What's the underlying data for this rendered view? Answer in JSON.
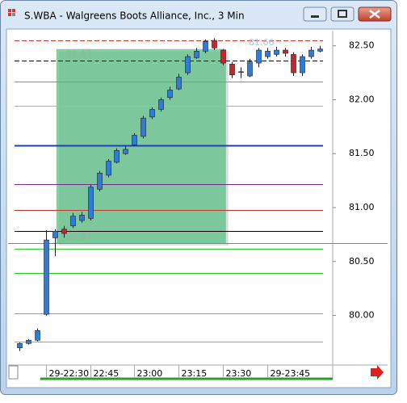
{
  "chart_data": {
    "type": "candlestick",
    "title": "S.WBA - Walgreens Boots Alliance, Inc., 3 Min",
    "categories": [
      null,
      null,
      null,
      "29-22:30",
      null,
      null,
      null,
      null,
      "22:45",
      null,
      null,
      null,
      null,
      "23:00",
      null,
      null,
      null,
      null,
      "23:15",
      null,
      null,
      null,
      null,
      "23:30",
      null,
      null,
      null,
      null,
      "29-23:45",
      null,
      null,
      null,
      null,
      null,
      null
    ],
    "open": [
      79.7,
      79.74,
      79.77,
      80.01,
      80.72,
      80.8,
      80.83,
      80.88,
      80.9,
      81.17,
      81.3,
      81.42,
      81.5,
      81.58,
      81.66,
      81.84,
      81.91,
      82.02,
      82.1,
      82.25,
      82.39,
      82.45,
      82.55,
      82.46,
      82.33,
      82.26,
      82.22,
      82.34,
      82.4,
      82.42,
      82.46,
      82.42,
      82.25,
      82.4,
      82.45
    ],
    "high": [
      79.75,
      79.78,
      79.88,
      80.79,
      80.8,
      80.83,
      80.95,
      80.96,
      81.21,
      81.34,
      81.45,
      81.55,
      81.57,
      81.69,
      81.85,
      81.93,
      82.02,
      82.12,
      82.24,
      82.42,
      82.48,
      82.56,
      82.57,
      82.47,
      82.35,
      82.3,
      82.38,
      82.48,
      82.48,
      82.49,
      82.48,
      82.44,
      82.42,
      82.49,
      82.5
    ],
    "low": [
      79.67,
      79.73,
      79.76,
      80.0,
      80.55,
      80.72,
      80.81,
      80.86,
      80.88,
      81.15,
      81.28,
      81.41,
      81.49,
      81.57,
      81.64,
      81.82,
      81.89,
      82.0,
      82.09,
      82.23,
      82.38,
      82.43,
      82.46,
      82.32,
      82.2,
      82.2,
      82.21,
      82.3,
      82.38,
      82.4,
      82.4,
      82.22,
      82.22,
      82.38,
      82.44
    ],
    "close": [
      79.74,
      79.77,
      79.86,
      80.7,
      80.78,
      80.76,
      80.92,
      80.93,
      81.19,
      81.32,
      81.43,
      81.53,
      81.54,
      81.67,
      81.83,
      81.91,
      82.0,
      82.09,
      82.21,
      82.4,
      82.45,
      82.54,
      82.48,
      82.34,
      82.23,
      82.26,
      82.35,
      82.46,
      82.45,
      82.46,
      82.43,
      82.25,
      82.4,
      82.46,
      82.47
    ],
    "up_color": "#2f7bd8",
    "down_color": "#c9252c",
    "ylim": [
      79.54,
      82.64
    ],
    "yticks": [
      {
        "value": 80.0,
        "label": "80.00"
      },
      {
        "value": 80.5,
        "label": "80.50"
      },
      {
        "value": 81.0,
        "label": "81.00"
      },
      {
        "value": 81.5,
        "label": "81.50"
      },
      {
        "value": 82.0,
        "label": "82.00"
      },
      {
        "value": 82.5,
        "label": "82.50"
      }
    ],
    "levels": [
      {
        "value": 82.55,
        "color": "#c0392b",
        "dashed": true
      },
      {
        "value": 82.36,
        "color": "#000000",
        "dashed": true
      },
      {
        "value": 82.17,
        "color": "#33cc33",
        "dashed": false
      },
      {
        "value": 81.94,
        "color": "#e68fd6",
        "dashed": false
      },
      {
        "value": 81.58,
        "color": "#1f3fb8",
        "dashed": false
      },
      {
        "value": 81.22,
        "color": "#7a2a8c",
        "dashed": false
      },
      {
        "value": 80.98,
        "color": "#c0392b",
        "dashed": false
      },
      {
        "value": 80.78,
        "color": "#000000",
        "dashed": false
      },
      {
        "value": 80.67,
        "color": "#3aa0b8",
        "dashed": false
      },
      {
        "value": 80.62,
        "color": "#33cc33",
        "dashed": false
      },
      {
        "value": 80.39,
        "color": "#22cc22",
        "dashed": false
      },
      {
        "value": 80.02,
        "color": "#999999",
        "dashed": false
      },
      {
        "value": 79.76,
        "color": "#e070e0",
        "dashed": false
      }
    ],
    "box": {
      "high": 82.47,
      "low": 80.67,
      "color": "#5bbf84"
    },
    "annotation": 81.66
  }
}
